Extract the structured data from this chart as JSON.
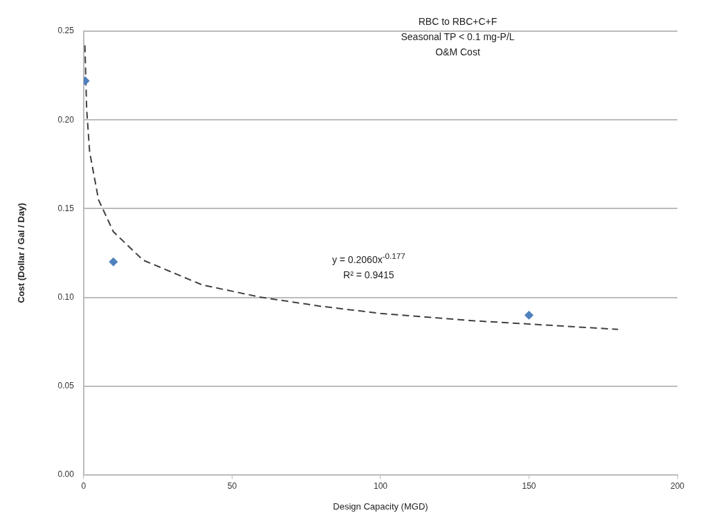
{
  "chart_data": {
    "type": "scatter",
    "title": "RBC to RBC+C+F\nSeasonal TP < 0.1 mg-P/L\nO&M Cost",
    "xlabel": "Design Capacity (MGD)",
    "ylabel": "Cost (Dollar / Gal / Day)",
    "annotations": [
      "y = 0.2060x$^{-0.177}$\nR² = 0.9415"
    ],
    "series": [
      {
        "color": "#4f81bd",
        "marker": "diamond",
        "x": [
          0.5,
          10,
          150
        ],
        "values": [
          0.222,
          0.12,
          0.09
        ]
      },
      {
        "type": "line",
        "color": "#404040",
        "marker": "none",
        "line_style": "dashed",
        "x": [
          0.4,
          1,
          2,
          5,
          10,
          20,
          40,
          60,
          80,
          100,
          130,
          150,
          180
        ],
        "values": [
          0.242,
          0.206,
          0.182,
          0.155,
          0.137,
          0.121,
          0.107,
          0.1,
          0.095,
          0.091,
          0.087,
          0.085,
          0.082
        ]
      }
    ],
    "xlim": [
      0,
      200
    ],
    "xticks": [
      0,
      50,
      100,
      150,
      200
    ],
    "ylim": [
      0,
      0.25
    ],
    "yticks": [
      {
        "value": 0,
        "label": "0.00"
      },
      {
        "value": 0.05,
        "label": "0.05"
      },
      {
        "value": 0.1,
        "label": "0.10"
      },
      {
        "value": 0.15,
        "label": "0.15"
      },
      {
        "value": 0.2,
        "label": "0.20"
      },
      {
        "value": 0.25,
        "label": "0.25"
      }
    ],
    "grid": "y",
    "legend": false
  }
}
